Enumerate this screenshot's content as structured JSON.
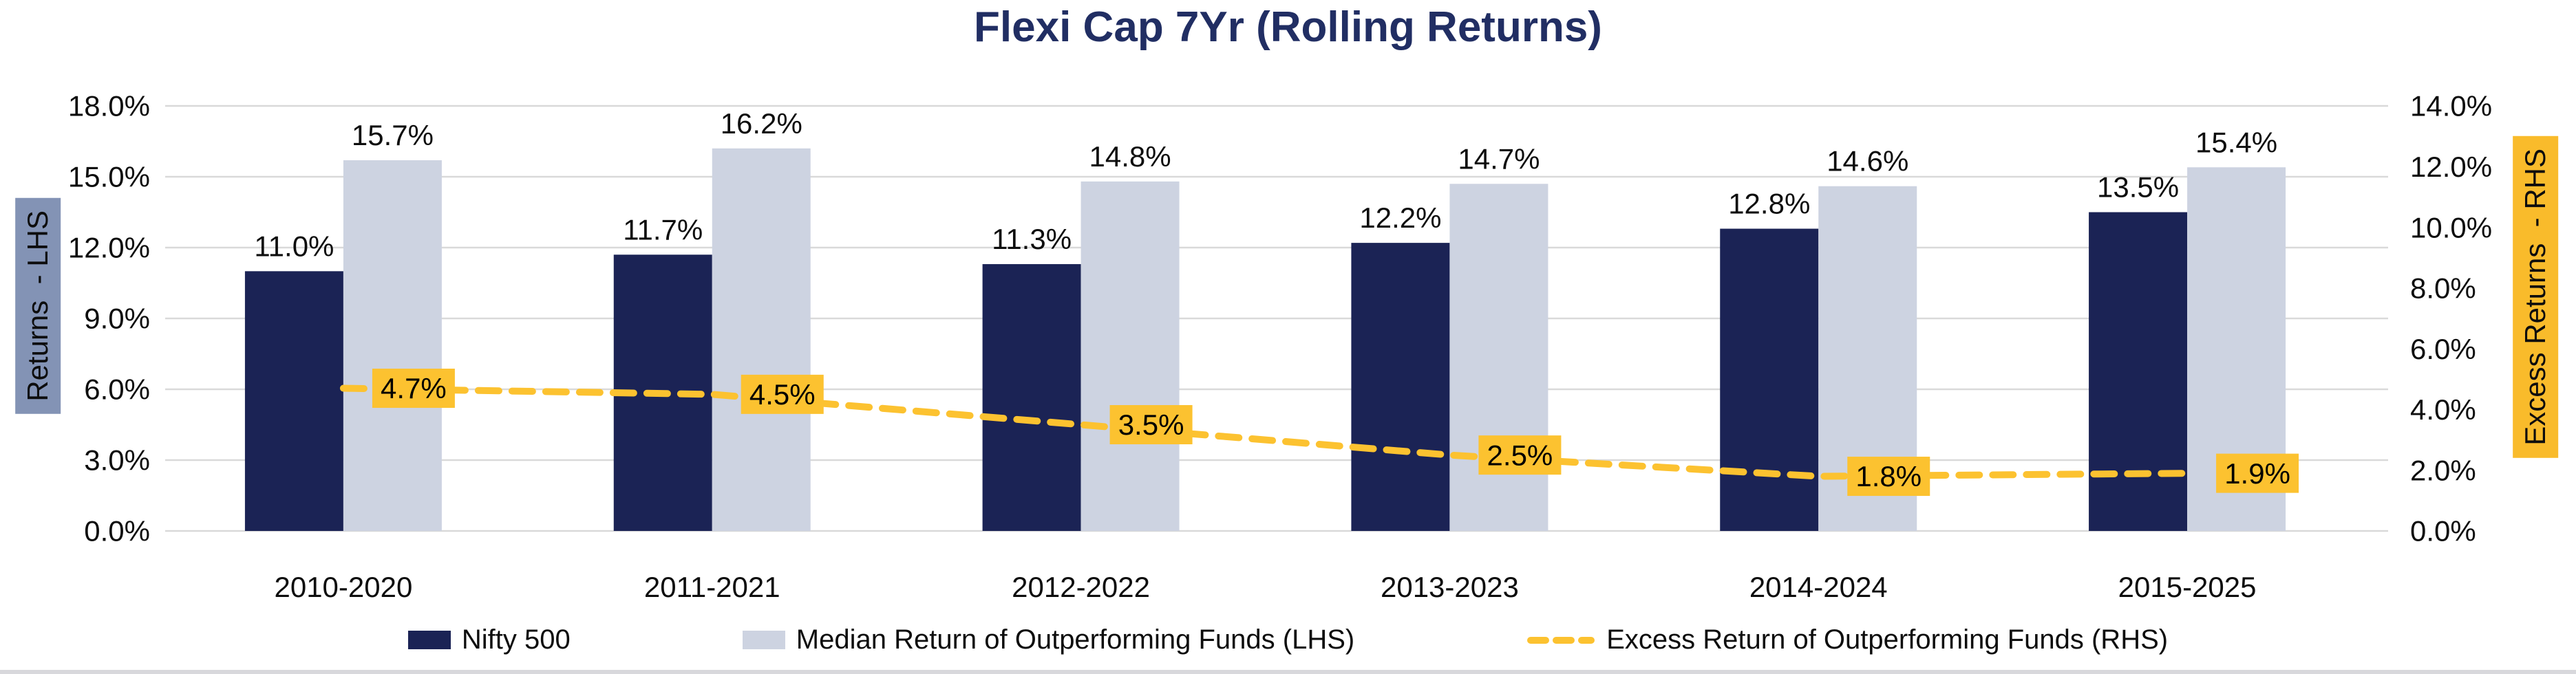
{
  "chart_data": {
    "type": "combo",
    "title": "Flexi Cap 7Yr (Rolling Returns)",
    "categories": [
      "2010-2020",
      "2011-2021",
      "2012-2022",
      "2013-2023",
      "2014-2024",
      "2015-2025"
    ],
    "series": [
      {
        "name": "Nifty 500",
        "type": "bar",
        "axis": "left",
        "color_key": "navy",
        "values": [
          11.0,
          11.7,
          11.3,
          12.2,
          12.8,
          13.5
        ],
        "labels": [
          "11.0%",
          "11.7%",
          "11.3%",
          "12.2%",
          "12.8%",
          "13.5%"
        ]
      },
      {
        "name": "Median Return of Outperforming Funds (LHS)",
        "type": "bar",
        "axis": "left",
        "color_key": "light",
        "values": [
          15.7,
          16.2,
          14.8,
          14.7,
          14.6,
          15.4
        ],
        "labels": [
          "15.7%",
          "16.2%",
          "14.8%",
          "14.7%",
          "14.6%",
          "15.4%"
        ]
      },
      {
        "name": "Excess Return of Outperforming Funds (RHS)",
        "type": "line",
        "axis": "right",
        "color_key": "yellow",
        "line_style": "dashed",
        "values": [
          4.7,
          4.5,
          3.5,
          2.5,
          1.8,
          1.9
        ],
        "labels": [
          "4.7%",
          "4.5%",
          "3.5%",
          "2.5%",
          "1.8%",
          "1.9%"
        ]
      }
    ],
    "left_axis": {
      "title": "Returns  - LHS",
      "min": 0,
      "max": 18,
      "step": 3,
      "tick_labels": [
        "0.0%",
        "3.0%",
        "6.0%",
        "9.0%",
        "12.0%",
        "15.0%",
        "18.0%"
      ]
    },
    "right_axis": {
      "title": "Excess Returns  - RHS",
      "min": 0,
      "max": 14,
      "step": 2,
      "tick_labels": [
        "0.0%",
        "2.0%",
        "4.0%",
        "6.0%",
        "8.0%",
        "10.0%",
        "12.0%",
        "14.0%"
      ]
    },
    "legend_position": "bottom",
    "grid": "horizontal"
  },
  "colors": {
    "navy": "#1B2355",
    "light": "#CDD3E1",
    "yellow": "#FCC230",
    "gridline": "#D9D9D9",
    "title": "#212E63",
    "left_axis_title_bg": "#8393B5",
    "right_axis_title_bg": "#F9BB2B",
    "text": "#0D0D0D"
  }
}
